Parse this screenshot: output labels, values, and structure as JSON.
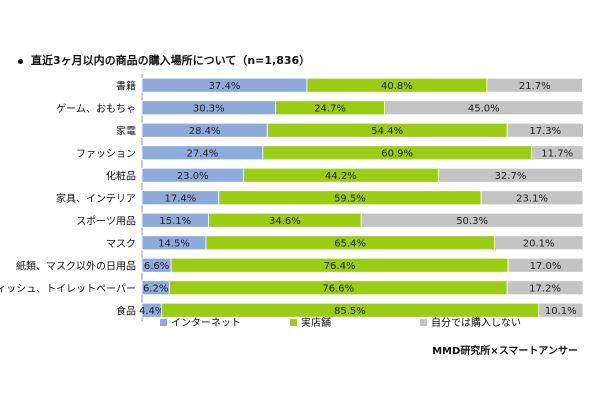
{
  "chart_data": {
    "type": "bar",
    "title": "直近3ヶ月以内の商品の購入場所について（n=1,836）",
    "categories": [
      "書籍",
      "ゲーム、おもちゃ",
      "家電",
      "ファッション",
      "化粧品",
      "家具、インテリア",
      "スポーツ用品",
      "マスク",
      "紙類、マスク以外の日用品",
      "ティッシュ、トイレットペーパー",
      "食品"
    ],
    "series": [
      {
        "name": "インターネット",
        "color": "#8eaadb",
        "values": [
          37.4,
          30.3,
          28.4,
          27.4,
          23.0,
          17.4,
          15.1,
          14.5,
          6.6,
          6.2,
          4.4
        ],
        "labels": [
          "37.4%",
          "30.3%",
          "28.4%",
          "27.4%",
          "23.0%",
          "17.4%",
          "15.1%",
          "14.5%",
          "6.6%",
          "6.2%",
          "4.4%"
        ]
      },
      {
        "name": "実店舗",
        "color": "#9acd14",
        "values": [
          40.8,
          24.7,
          54.4,
          60.9,
          44.2,
          59.5,
          34.6,
          65.4,
          76.4,
          76.6,
          85.5
        ],
        "labels": [
          "40.8%",
          "24.7%",
          "54.4%",
          "60.9%",
          "44.2%",
          "59.5%",
          "34.6%",
          "65.4%",
          "76.4%",
          "76.6%",
          "85.5%"
        ]
      },
      {
        "name": "自分では購入しない",
        "color": "#c4c4c4",
        "values": [
          21.7,
          45.0,
          17.3,
          11.7,
          32.7,
          23.1,
          50.3,
          20.1,
          17.0,
          17.2,
          10.1
        ],
        "labels": [
          "21.7%",
          "45.0%",
          "17.3%",
          "11.7%",
          "32.7%",
          "23.1%",
          "50.3%",
          "20.1%",
          "17.0%",
          "17.2%",
          "10.1%"
        ]
      }
    ],
    "stacked": true,
    "orientation": "horizontal",
    "xlim": [
      0,
      100
    ],
    "legend_position": "bottom",
    "grid": false
  },
  "source": "MMD研究所×スマートアンサー"
}
